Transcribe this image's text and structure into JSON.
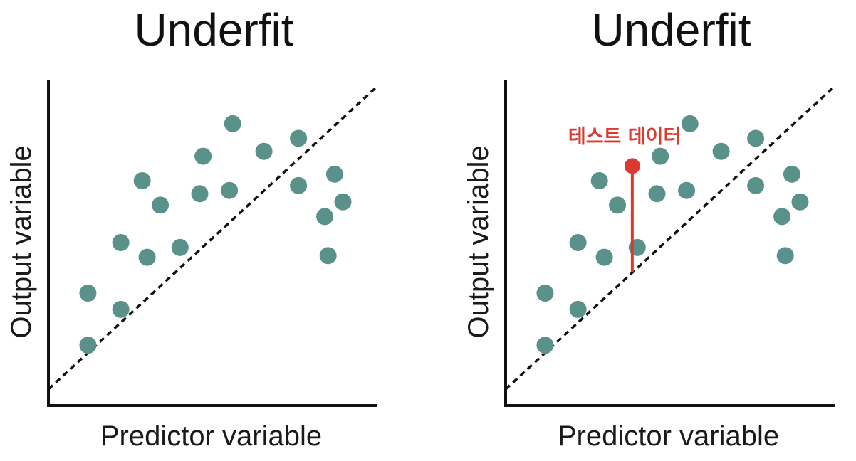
{
  "colors": {
    "point": "#5a918b",
    "test": "#dc3a2f",
    "axis": "#111111",
    "trend": "#111111"
  },
  "chart_data": [
    {
      "type": "scatter",
      "title": "Underfit",
      "xlabel": "Predictor variable",
      "ylabel": "Output variable",
      "xlim": [
        0,
        10
      ],
      "ylim": [
        0,
        10
      ],
      "grid": false,
      "trend_line": {
        "style": "dashed",
        "from": [
          0,
          0.5
        ],
        "to": [
          10,
          9.8
        ]
      },
      "points": [
        [
          1.2,
          1.85
        ],
        [
          1.2,
          3.45
        ],
        [
          2.2,
          2.95
        ],
        [
          2.2,
          5.0
        ],
        [
          2.85,
          6.9
        ],
        [
          3.4,
          6.15
        ],
        [
          3.0,
          4.55
        ],
        [
          4.0,
          4.85
        ],
        [
          4.6,
          6.5
        ],
        [
          4.7,
          7.65
        ],
        [
          5.5,
          6.6
        ],
        [
          5.6,
          8.65
        ],
        [
          6.55,
          7.8
        ],
        [
          7.6,
          8.2
        ],
        [
          7.6,
          6.75
        ],
        [
          8.4,
          5.8
        ],
        [
          8.7,
          7.1
        ],
        [
          8.95,
          6.25
        ],
        [
          8.5,
          4.6
        ]
      ]
    },
    {
      "type": "scatter",
      "title": "Underfit",
      "xlabel": "Predictor variable",
      "ylabel": "Output variable",
      "xlim": [
        0,
        10
      ],
      "ylim": [
        0,
        10
      ],
      "grid": false,
      "trend_line": {
        "style": "dashed",
        "from": [
          0,
          0.5
        ],
        "to": [
          10,
          9.8
        ]
      },
      "points": [
        [
          1.2,
          1.85
        ],
        [
          1.2,
          3.45
        ],
        [
          2.2,
          2.95
        ],
        [
          2.2,
          5.0
        ],
        [
          2.85,
          6.9
        ],
        [
          3.4,
          6.15
        ],
        [
          3.0,
          4.55
        ],
        [
          4.0,
          4.85
        ],
        [
          4.6,
          6.5
        ],
        [
          4.7,
          7.65
        ],
        [
          5.5,
          6.6
        ],
        [
          5.6,
          8.65
        ],
        [
          6.55,
          7.8
        ],
        [
          7.6,
          8.2
        ],
        [
          7.6,
          6.75
        ],
        [
          8.4,
          5.8
        ],
        [
          8.7,
          7.1
        ],
        [
          8.95,
          6.25
        ],
        [
          8.5,
          4.6
        ]
      ],
      "test_point": {
        "x": 3.85,
        "y": 7.35,
        "label": "테스트 데이터"
      }
    }
  ]
}
